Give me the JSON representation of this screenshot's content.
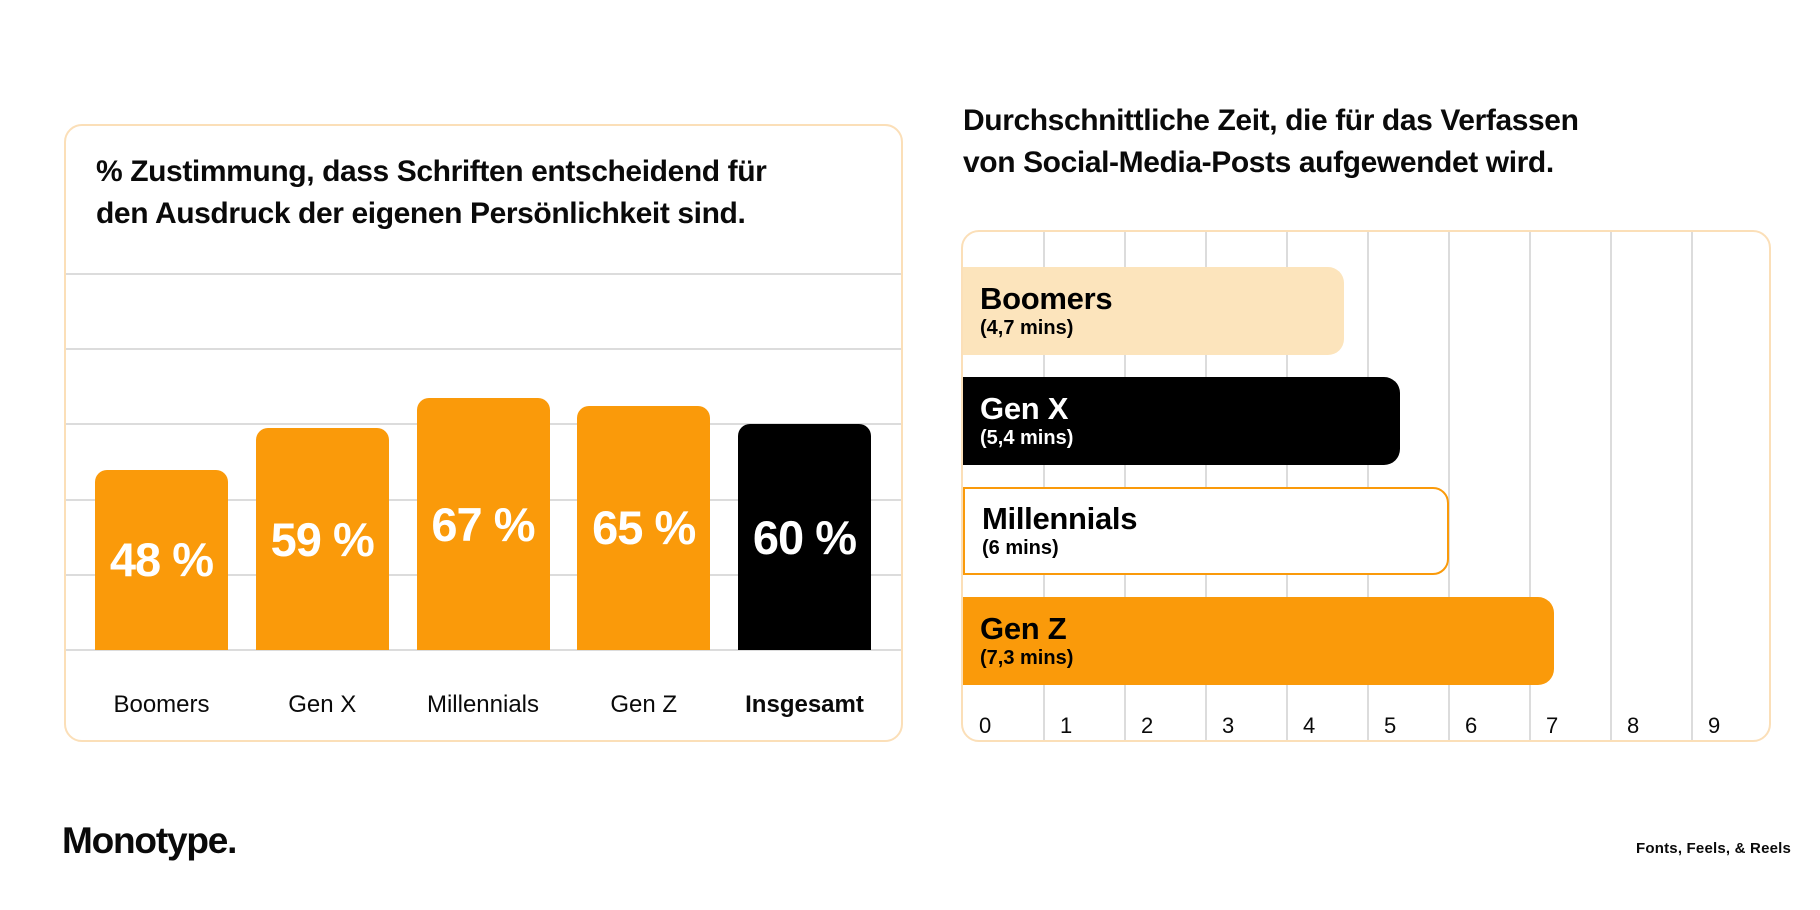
{
  "page": {
    "background": "#ffffff"
  },
  "colors": {
    "orange": "#fa9a0a",
    "peach_fill": "#fce4bc",
    "card_border": "#fbdfb8",
    "black": "#000000",
    "gridline": "#dcdcdc",
    "white": "#ffffff"
  },
  "footer": {
    "brand": "Monotype.",
    "campaign": "Fonts, Feels, & Reels"
  },
  "chart_data": [
    {
      "type": "bar",
      "title": "% Zustimmung, dass Schriften entscheidend für den Ausdruck der eigenen Persönlichkeit sind.",
      "title_lines": [
        "% Zustimmung, dass Schriften entscheidend für",
        "den Ausdruck der eigenen Persönlichkeit sind."
      ],
      "categories": [
        "Boomers",
        "Gen X",
        "Millennials",
        "Gen Z",
        "Insgesamt"
      ],
      "values": [
        48,
        59,
        67,
        65,
        60
      ],
      "value_labels": [
        "48 %",
        "59 %",
        "67 %",
        "65 %",
        "60 %"
      ],
      "bar_colors": [
        "#fa9a0a",
        "#fa9a0a",
        "#fa9a0a",
        "#fa9a0a",
        "#000000"
      ],
      "category_bold": [
        false,
        false,
        false,
        false,
        true
      ],
      "xlabel": "",
      "ylabel": "",
      "ylim": [
        0,
        100
      ],
      "grid_step": 20,
      "grid": true,
      "legend": false
    },
    {
      "type": "bar",
      "orientation": "horizontal",
      "title": "Durchschnittliche Zeit, die für das Verfassen von Social-Media-Posts aufgewendet wird.",
      "title_lines": [
        "Durchschnittliche Zeit, die für das Verfassen",
        "von Social-Media-Posts aufgewendet wird."
      ],
      "rows": [
        {
          "name": "Boomers",
          "detail": "(4,7 mins)",
          "value": 4.7,
          "fill": "#fce4bc",
          "text": "#000000",
          "border": null
        },
        {
          "name": "Gen X",
          "detail": "(5,4 mins)",
          "value": 5.4,
          "fill": "#000000",
          "text": "#ffffff",
          "border": null
        },
        {
          "name": "Millennials",
          "detail": "(6 mins)",
          "value": 6.0,
          "fill": "#ffffff",
          "text": "#000000",
          "border": "#fa9a0a"
        },
        {
          "name": "Gen Z",
          "detail": "(7,3 mins)",
          "value": 7.3,
          "fill": "#fa9a0a",
          "text": "#000000",
          "border": null
        }
      ],
      "xlim": [
        0,
        10
      ],
      "x_ticks": [
        "0",
        "1",
        "2",
        "3",
        "4",
        "5",
        "6",
        "7",
        "8",
        "9"
      ],
      "xlabel": "",
      "ylabel": "",
      "grid": true,
      "legend": false
    }
  ]
}
